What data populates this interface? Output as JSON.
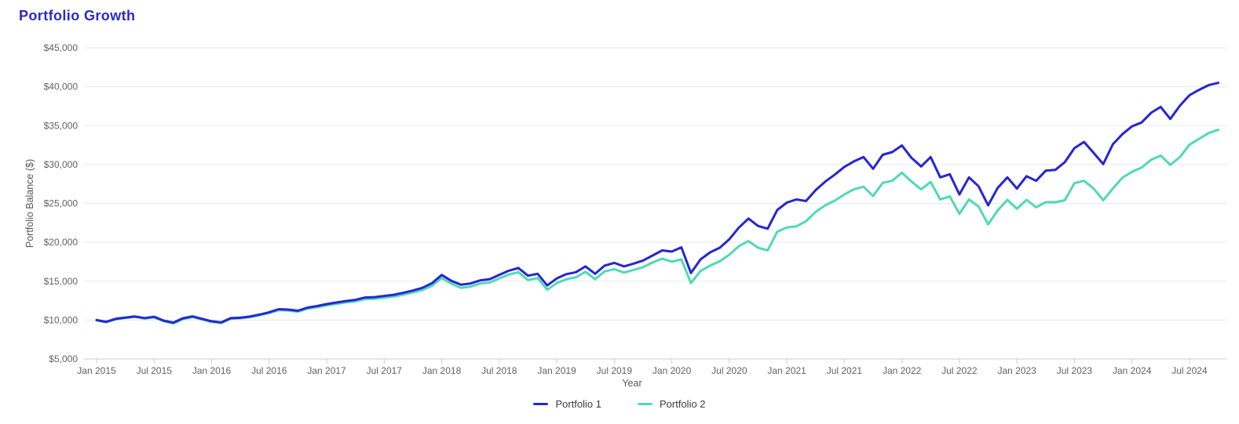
{
  "page": {
    "title": "Portfolio Growth"
  },
  "colors": {
    "title": "#2a2acc",
    "portfolio1_line": "#2526d4",
    "portfolio2_line": "#4fdab3",
    "gridline": "#e9e9e9",
    "axis_line": "#c9ced6",
    "tick_text": "#616161",
    "axis_title_text": "#565656",
    "legend_text": "#3d3d3d"
  },
  "chart_data": {
    "type": "line",
    "title": "Portfolio Growth",
    "xlabel": "Year",
    "ylabel": "Portfolio Balance ($)",
    "x_unit": "month",
    "x_range": [
      "Jan 2015",
      "Oct 2024"
    ],
    "ylim": [
      5000,
      45000
    ],
    "grid": "horizontal",
    "legend_position": "bottom",
    "y_ticks": [
      5000,
      10000,
      15000,
      20000,
      25000,
      30000,
      35000,
      40000,
      45000
    ],
    "y_tick_labels": [
      "$5,000",
      "$10,000",
      "$15,000",
      "$20,000",
      "$25,000",
      "$30,000",
      "$35,000",
      "$40,000",
      "$45,000"
    ],
    "x_tick_month_indices": [
      0,
      6,
      12,
      18,
      24,
      30,
      36,
      42,
      48,
      54,
      60,
      66,
      72,
      78,
      84,
      90,
      96,
      102,
      108,
      114
    ],
    "x_tick_labels": [
      "Jan 2015",
      "Jul 2015",
      "Jan 2016",
      "Jul 2016",
      "Jan 2017",
      "Jul 2017",
      "Jan 2018",
      "Jul 2018",
      "Jan 2019",
      "Jul 2019",
      "Jan 2020",
      "Jul 2020",
      "Jan 2021",
      "Jul 2021",
      "Jan 2022",
      "Jul 2022",
      "Jan 2023",
      "Jul 2023",
      "Jan 2024",
      "Jul 2024"
    ],
    "series": [
      {
        "name": "Portfolio 1",
        "color": "#2526d4",
        "values": [
          10000,
          9780,
          10160,
          10310,
          10460,
          10260,
          10420,
          9930,
          9680,
          10230,
          10470,
          10160,
          9850,
          9700,
          10250,
          10300,
          10450,
          10700,
          11000,
          11400,
          11350,
          11200,
          11600,
          11800,
          12050,
          12250,
          12450,
          12600,
          12900,
          12950,
          13100,
          13250,
          13500,
          13800,
          14150,
          14750,
          15800,
          15050,
          14550,
          14700,
          15100,
          15250,
          15800,
          16350,
          16700,
          15700,
          15950,
          14450,
          15350,
          15900,
          16150,
          16900,
          15950,
          17000,
          17350,
          16900,
          17250,
          17650,
          18300,
          18950,
          18800,
          19350,
          16050,
          17800,
          18700,
          19300,
          20400,
          21900,
          23050,
          22100,
          21750,
          24150,
          25100,
          25500,
          25300,
          26700,
          27800,
          28700,
          29700,
          30400,
          30950,
          29450,
          31250,
          31600,
          32450,
          30850,
          29750,
          30950,
          28350,
          28750,
          26150,
          28350,
          27200,
          24750,
          27000,
          28350,
          26900,
          28500,
          27900,
          29200,
          29300,
          30300,
          32100,
          32900,
          31500,
          30050,
          32600,
          33900,
          34900,
          35400,
          36650,
          37400,
          35850,
          37550,
          38900,
          39600,
          40200,
          40500
        ]
      },
      {
        "name": "Portfolio 2",
        "color": "#4fdab3",
        "values": [
          9980,
          9730,
          10090,
          10270,
          10400,
          10190,
          10330,
          9850,
          9560,
          10120,
          10380,
          10070,
          9760,
          9620,
          10170,
          10230,
          10380,
          10620,
          10900,
          11280,
          11230,
          11080,
          11450,
          11650,
          11880,
          12070,
          12260,
          12400,
          12690,
          12730,
          12880,
          13020,
          13260,
          13540,
          13870,
          14420,
          15400,
          14680,
          14150,
          14300,
          14700,
          14820,
          15350,
          15850,
          16150,
          15150,
          15400,
          13900,
          14750,
          15250,
          15500,
          16200,
          15250,
          16250,
          16550,
          16100,
          16450,
          16800,
          17400,
          17900,
          17500,
          17800,
          14750,
          16300,
          17000,
          17550,
          18400,
          19500,
          20150,
          19300,
          18950,
          21350,
          21900,
          22050,
          22700,
          23900,
          24750,
          25350,
          26150,
          26800,
          27150,
          25950,
          27650,
          27900,
          28950,
          27800,
          26800,
          27750,
          25500,
          25900,
          23650,
          25500,
          24600,
          22300,
          24100,
          25450,
          24300,
          25450,
          24500,
          25150,
          25150,
          25400,
          27600,
          27900,
          26900,
          25400,
          26900,
          28300,
          29050,
          29600,
          30600,
          31150,
          29950,
          30950,
          32550,
          33300,
          34050,
          34450
        ]
      }
    ]
  },
  "legend": {
    "items": [
      {
        "label": "Portfolio 1"
      },
      {
        "label": "Portfolio 2"
      }
    ]
  }
}
